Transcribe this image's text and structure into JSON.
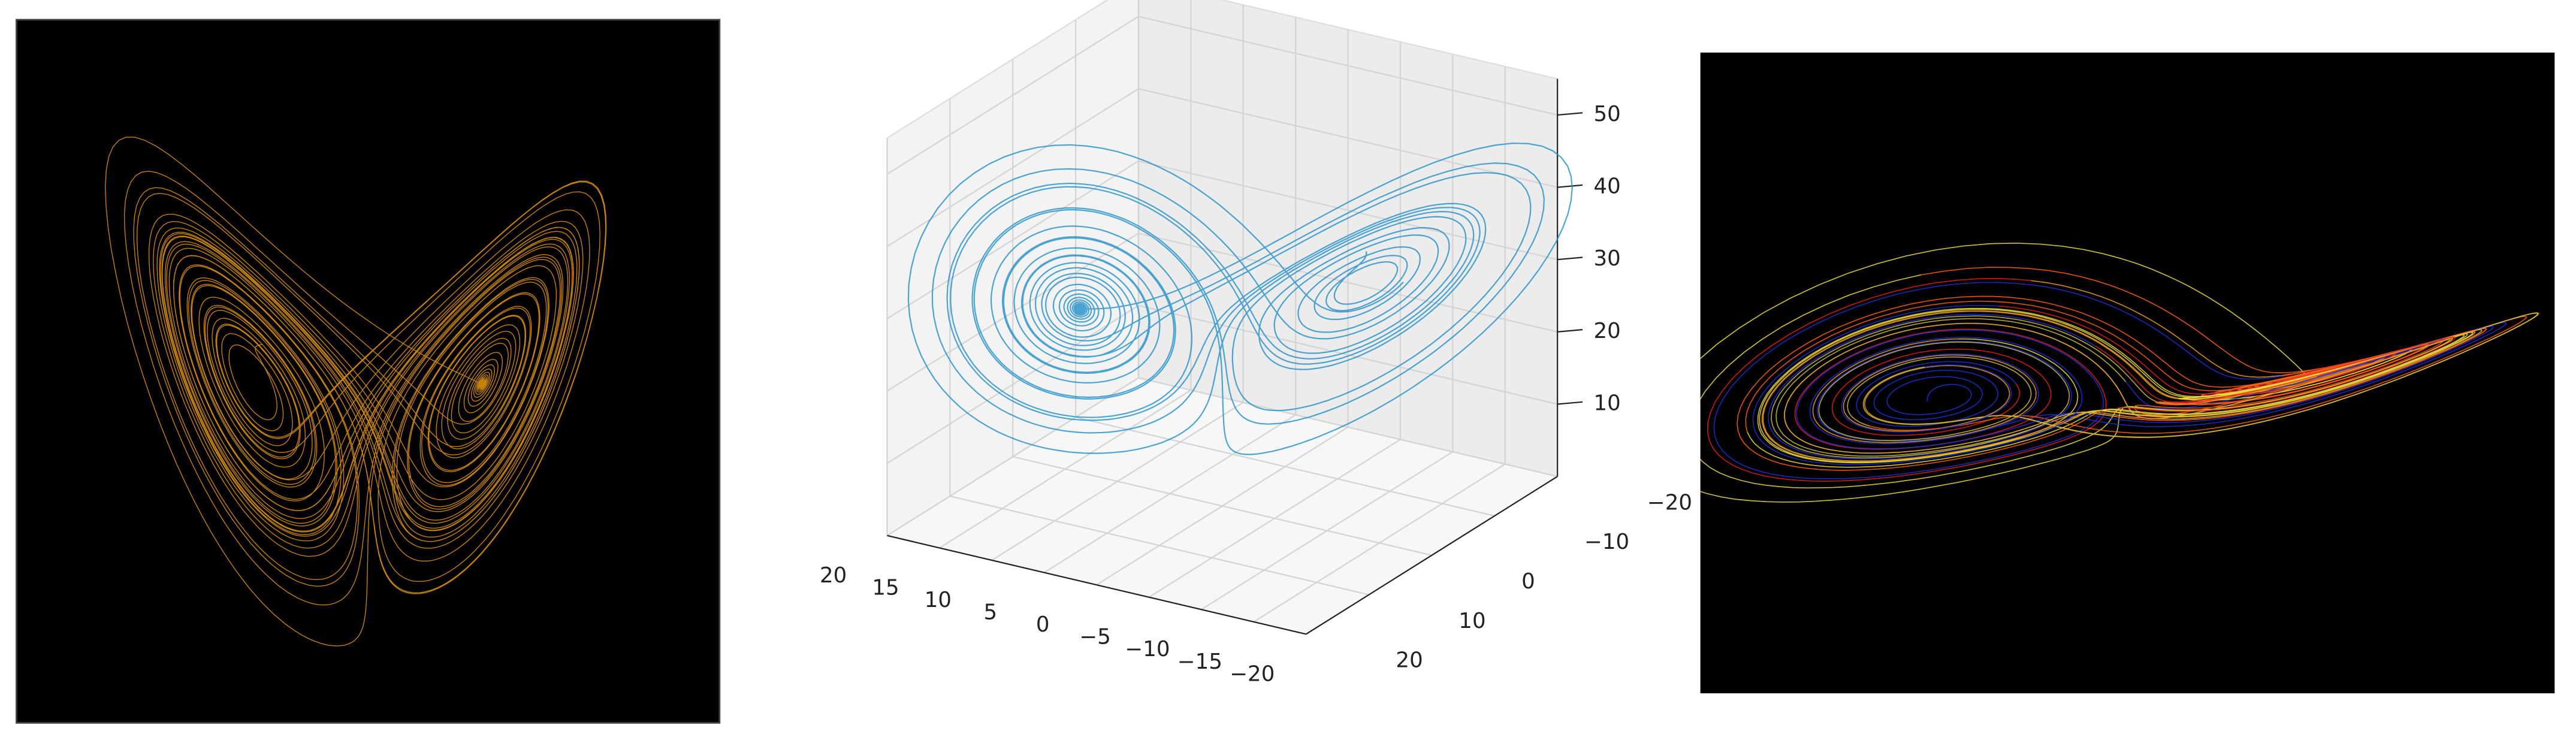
{
  "plot_3d": {
    "x_ticks": [
      "20",
      "15",
      "10",
      "5",
      "0",
      "−5",
      "−10",
      "−15",
      "−20"
    ],
    "y_ticks": [
      "−20",
      "−10",
      "0",
      "10",
      "20"
    ],
    "z_ticks": [
      "10",
      "20",
      "30",
      "40",
      "50"
    ]
  }
}
